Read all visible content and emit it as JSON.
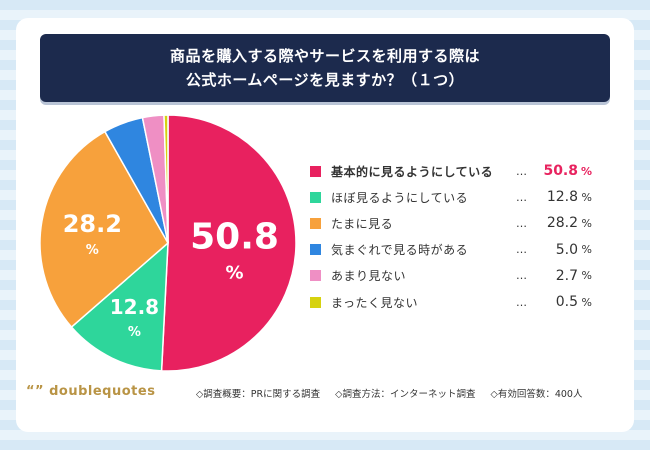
{
  "title_lines": [
    "商品を購入する際やサービスを利用する際は",
    "公式ホームページを見ますか？（１つ）"
  ],
  "chart_data": {
    "type": "pie",
    "title": "商品を購入する際やサービスを利用する際は公式ホームページを見ますか？（１つ）",
    "unit": "%",
    "slices": [
      {
        "label": "基本的に見るようにしている",
        "value": 50.8,
        "color": "#e8215f"
      },
      {
        "label": "ほぼ見るようにしている",
        "value": 12.8,
        "color": "#2ed69b"
      },
      {
        "label": "たまに見る",
        "value": 28.2,
        "color": "#f7a13c"
      },
      {
        "label": "気まぐれで見る時がある",
        "value": 5.0,
        "color": "#2f86e0"
      },
      {
        "label": "あまり見ない",
        "value": 2.7,
        "color": "#ef8fc4"
      },
      {
        "label": "まったく見ない",
        "value": 0.5,
        "color": "#d6d20f"
      }
    ],
    "inner_labels": [
      {
        "index": 0,
        "value_text": "50.8",
        "unit": "%"
      },
      {
        "index": 2,
        "value_text": "28.2",
        "unit": "%"
      },
      {
        "index": 1,
        "value_text": "12.8",
        "unit": "%"
      }
    ],
    "legend_values": [
      "50.8",
      "12.8",
      "28.2",
      "5.0",
      "2.7",
      "0.5"
    ],
    "legend_placement": "right",
    "highlight_index": 0
  },
  "legend_dots": "…",
  "footer": {
    "logo": "“” doublequotes",
    "notes": [
      "◇調査概要：PRに関する調査",
      "◇調査方法：インターネット調査",
      "◇有効回答数：400人"
    ]
  }
}
